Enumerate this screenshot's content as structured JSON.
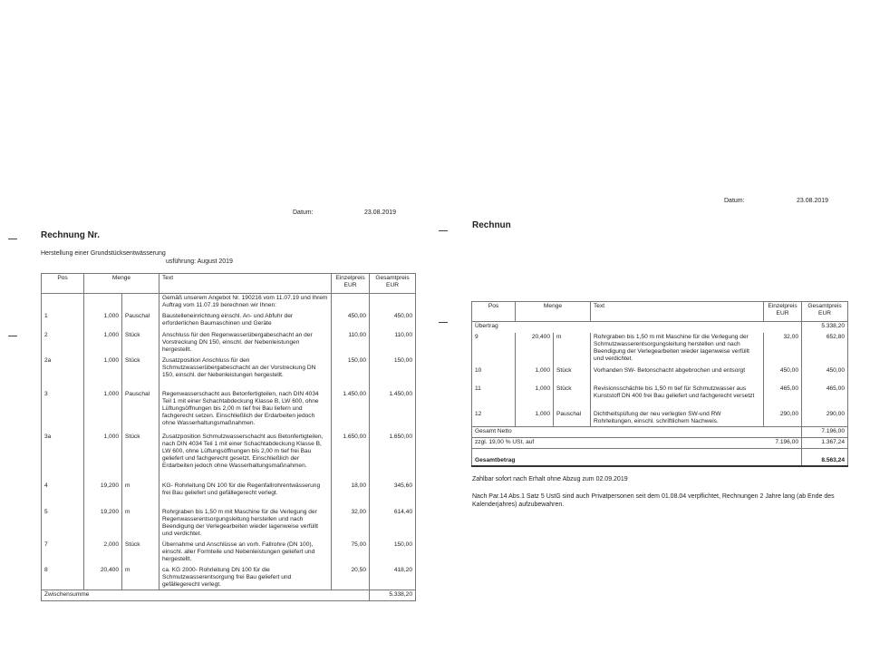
{
  "page1": {
    "date_label": "Datum:",
    "date": "23.08.2019",
    "title": "Rechnung Nr.",
    "subtitle": "Herstellung einer Grundstücksentwässerung",
    "execution": "usführung: August 2019",
    "headers": {
      "pos": "Pos",
      "menge": "Menge",
      "text": "Text",
      "einzel": "Einzelpreis EUR",
      "gesamt": "Gesamtpreis EUR"
    },
    "intro": "Gemäß unserem Angebot Nr. 190216 vom 11.07.19 und Ihrem Auftrag vom 11.07.19 berechnen wir Ihnen:",
    "rows": [
      {
        "pos": "1",
        "qty": "1,000",
        "unit": "Pauschal",
        "text": "Baustelleneinrichtung einschl. An- und Abfuhr der erforderlichen Baumaschinen und Geräte",
        "einzel": "450,00",
        "gesamt": "450,00"
      },
      {
        "pos": "2",
        "qty": "1,000",
        "unit": "Stück",
        "text": "Anschluss für den Regenwasserübergabeschacht an der Vorstreckung DN 150, einschl. der Nebenleistungen hergestellt.",
        "einzel": "110,00",
        "gesamt": "110,00"
      },
      {
        "pos": "2a",
        "qty": "1,000",
        "unit": "Stück",
        "text": "Zusatzposition Anschluss für den Schmutzwasserübergabeschacht an der Vorstreckung DN 150, einschl. der Nebenleistungen hergestellt.",
        "einzel": "150,00",
        "gesamt": "150,00"
      },
      {
        "pos": "3",
        "qty": "1,000",
        "unit": "Pauschal",
        "text": "Regenwasserschacht aus Betonfertigteilen, nach DIN 4034 Teil 1 mit einer Schachtabdeckung Klasse B, LW 600, ohne Lüftungsöffnungen bis 2,00 m tief frei Bau liefern und fachgerecht setzen. Einschließlich der Erdarbeiten jedoch ohne Wasserhaltungsmaßnahmen.",
        "einzel": "1.450,00",
        "gesamt": "1.450,00"
      },
      {
        "pos": "3a",
        "qty": "1,000",
        "unit": "Stück",
        "text": "Zusatzposition Schmutzwasserschacht aus Betonfertigteilen, nach DIN 4034 Teil 1 mit einer Schachtabdeckung Klasse B, LW 600, ohne Lüftungsöffnungen bis 2,00 m tief frei Bau geliefert und fachgerecht gesetzt. Einschließlich der Erdarbeiten jedoch ohne Wasserhaltungsmaßnahmen.",
        "einzel": "1.650,00",
        "gesamt": "1.650,00"
      },
      {
        "pos": "4",
        "qty": "19,200",
        "unit": "m",
        "text": "KG- Rohrleitung DN 100 für die Regenfallrohrentwässerung frei Bau geliefert und gefällegerecht verlegt.",
        "einzel": "18,00",
        "gesamt": "345,60"
      },
      {
        "pos": "5",
        "qty": "19,200",
        "unit": "m",
        "text": "Rohrgraben bis 1,50 m mit Maschine für die Verlegung der Regenwasserentsorgungsleitung herstellen und nach Beendigung der Verlegearbeiten wieder lagenweise verfüllt und verdichtet.",
        "einzel": "32,00",
        "gesamt": "614,40"
      },
      {
        "pos": "7",
        "qty": "2,000",
        "unit": "Stück",
        "text": "Übernahme und Anschlüsse an vorh. Fallrohre (DN 100), einschl. aller Formteile und Nebenleistungen geliefert und hergestellt.",
        "einzel": "75,00",
        "gesamt": "150,00"
      },
      {
        "pos": "8",
        "qty": "20,400",
        "unit": "m",
        "text": "ca. KG 2000- Rohrleitung DN 100 für die Schmutzwasserentsorgung frei Bau geliefert und gefällegerecht verlegt.",
        "einzel": "20,50",
        "gesamt": "418,20"
      }
    ],
    "subtotal_label": "Zwischensumme",
    "subtotal": "5.338,20"
  },
  "page2": {
    "date_label": "Datum:",
    "date": "23.08.2019",
    "title": "Rechnun",
    "headers": {
      "pos": "Pos",
      "menge": "Menge",
      "text": "Text",
      "einzel": "Einzelpreis EUR",
      "gesamt": "Gesamtpreis EUR"
    },
    "carry_label": "Übertrag",
    "carry": "5.338,20",
    "rows": [
      {
        "pos": "9",
        "qty": "20,400",
        "unit": "m",
        "text": "Rohrgraben bis 1,50 m mit Maschine für die Verlegung der Schmutzwasserentsorgungsleitung herstellen und nach Beendigung der Verlegearbeiten wieder lagenweise verfüllt und verdichtet.",
        "einzel": "32,00",
        "gesamt": "652,80"
      },
      {
        "pos": "10",
        "qty": "1,000",
        "unit": "Stück",
        "text": "Vorhanden SW- Betonschacht abgebrochen und entsorgt",
        "einzel": "450,00",
        "gesamt": "450,00"
      },
      {
        "pos": "11",
        "qty": "1,000",
        "unit": "Stück",
        "text": "Revisionsschächte bis 1,50 m tief für Schmutzwasser aus Kunststoff DN 400 frei Bau geliefert und fachgerecht versetzt",
        "einzel": "465,00",
        "gesamt": "465,00"
      },
      {
        "pos": "12",
        "qty": "1,000",
        "unit": "Pauschal",
        "text": "Dichtheitspüfung der neu verlegten SW-und RW Rohrleitungen, einschl. schriftlichem Nachweis.",
        "einzel": "290,00",
        "gesamt": "290,00"
      }
    ],
    "net_label": "Gesamt Netto",
    "net": "7.196,00",
    "vat_label": "zzgl. 19,00 % USt. auf",
    "vat_base": "7.196,00",
    "vat": "1.367,24",
    "total_label": "Gesamtbetrag",
    "total": "8.563,24",
    "payment_note": "Zahlbar sofort nach Erhalt ohne Abzug zum 02.09.2019",
    "legal_note": "Nach Par.14 Abs.1 Satz 5 UstG sind auch Privatpersonen seit dem 01.08.04 verpflichtet, Rechnungen 2 Jahre lang (ab Ende des Kalenderjahres) aufzubewahren."
  }
}
